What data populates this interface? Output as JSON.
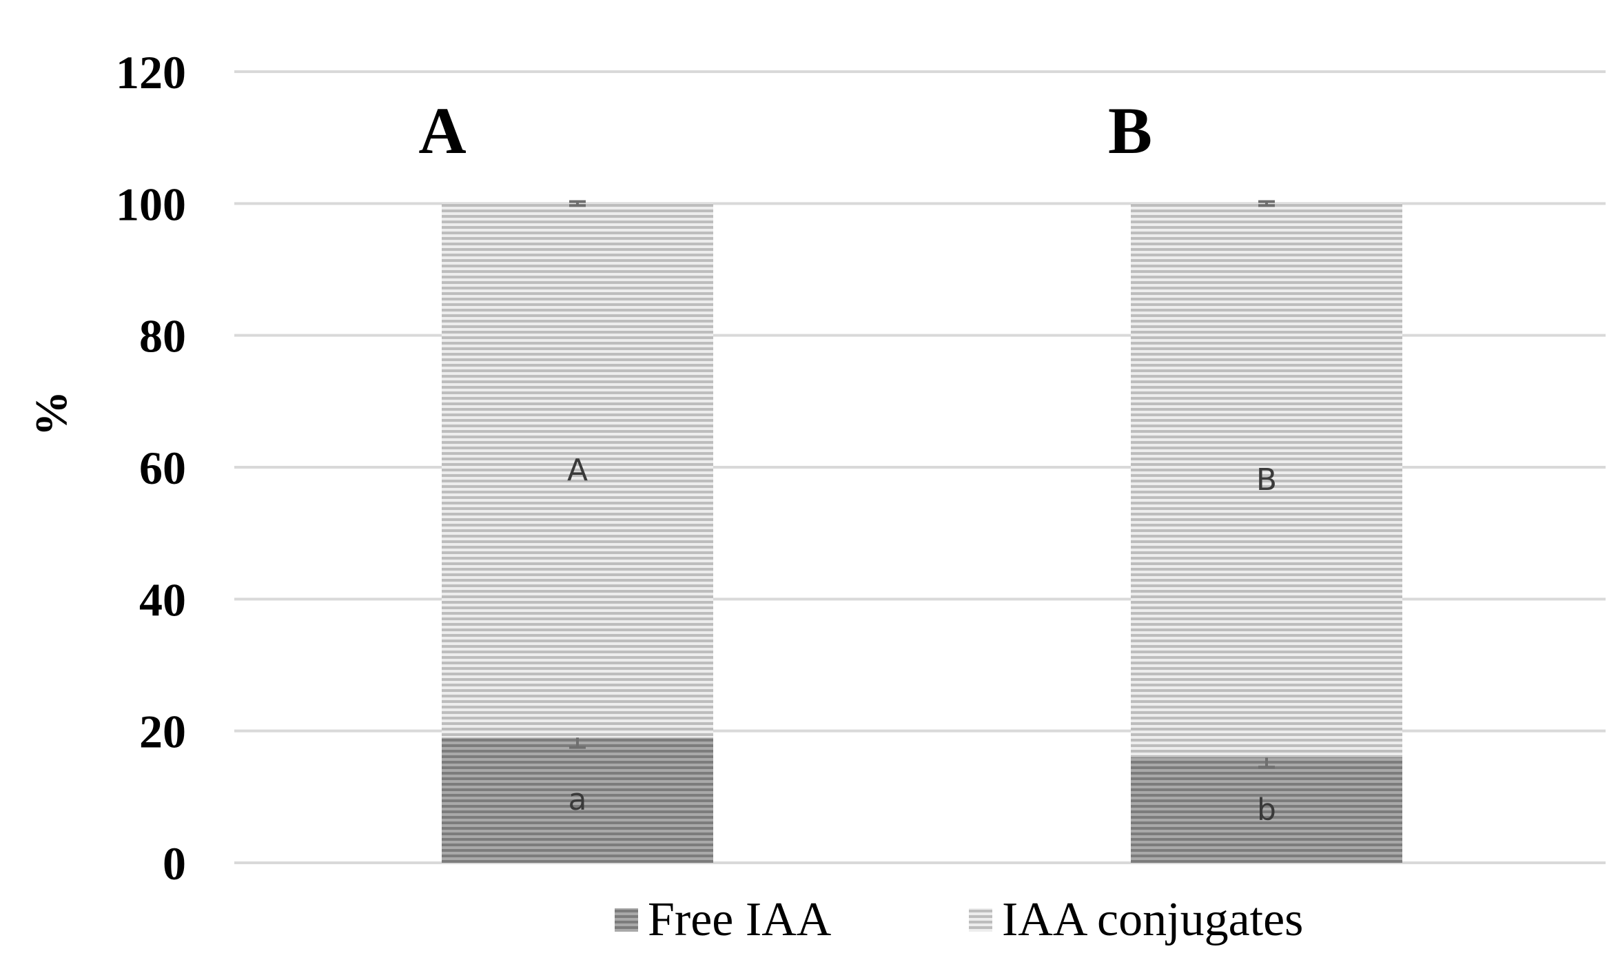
{
  "chart_data": {
    "type": "bar",
    "stacked": true,
    "categories": [
      "A",
      "B"
    ],
    "series": [
      {
        "name": "Free IAA",
        "values": [
          19,
          16
        ],
        "errors": [
          1.5,
          1.5
        ],
        "letters": [
          "a",
          "b"
        ],
        "color": "#8c8c8c"
      },
      {
        "name": "IAA conjugates",
        "values": [
          81,
          84
        ],
        "errors": [
          0.3,
          0.3
        ],
        "letters": [
          "A",
          "B"
        ],
        "color": "#c8c8c8"
      }
    ],
    "xlabel": "",
    "ylabel": "%",
    "ylim": [
      0,
      120
    ],
    "yticks": [
      0,
      20,
      40,
      60,
      80,
      100,
      120
    ],
    "grid": true,
    "legend_position": "bottom"
  }
}
